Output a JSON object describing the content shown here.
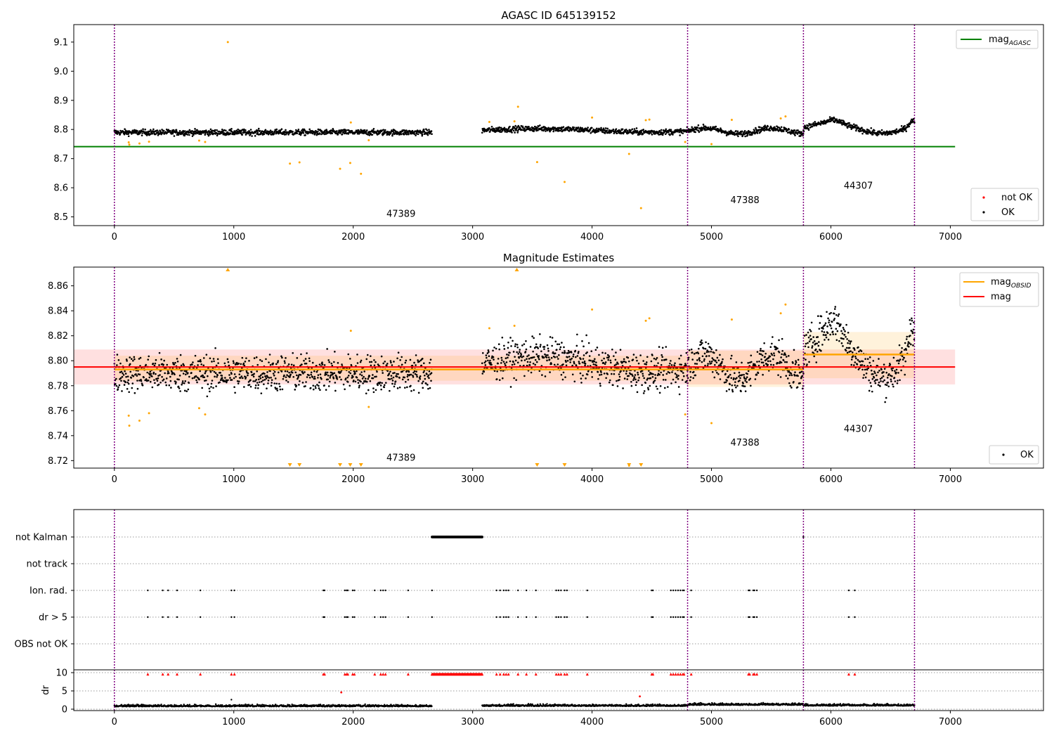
{
  "chart_data": [
    {
      "name": "agasc",
      "type": "scatter",
      "title": "AGASC ID 645139152",
      "xlim": [
        -340,
        7780
      ],
      "ylim": [
        8.47,
        9.16
      ],
      "yticks": [
        8.5,
        8.6,
        8.7,
        8.8,
        8.9,
        9.0,
        9.1
      ],
      "xticks": [
        0,
        1000,
        2000,
        3000,
        4000,
        5000,
        6000,
        7000
      ],
      "mag_agasc": 8.741,
      "obs_boundaries": [
        0,
        4800,
        5770,
        6700
      ],
      "obsid_labels": [
        {
          "text": "47389",
          "x": 2400,
          "y": 8.5
        },
        {
          "text": "47388",
          "x": 5280,
          "y": 8.547
        },
        {
          "text": "44307",
          "x": 6230,
          "y": 8.597
        }
      ],
      "ok_segments": [
        {
          "x": [
            0,
            2660
          ],
          "base": 8.79,
          "amp": 0.004
        },
        {
          "x": [
            3080,
            4800
          ],
          "base": 8.797,
          "amp": 0.006
        },
        {
          "x": [
            4800,
            5770
          ],
          "base": 8.795,
          "amp": 0.01
        },
        {
          "x": [
            5770,
            6700
          ],
          "base": 8.805,
          "amp": 0.018
        }
      ],
      "not_ok_points": [
        {
          "x": 950,
          "y": 9.1
        },
        {
          "x": 120,
          "y": 8.756
        },
        {
          "x": 125,
          "y": 8.748
        },
        {
          "x": 210,
          "y": 8.752
        },
        {
          "x": 290,
          "y": 8.758
        },
        {
          "x": 710,
          "y": 8.762
        },
        {
          "x": 760,
          "y": 8.757
        },
        {
          "x": 1470,
          "y": 8.683
        },
        {
          "x": 1550,
          "y": 8.687
        },
        {
          "x": 1890,
          "y": 8.665
        },
        {
          "x": 1975,
          "y": 8.685
        },
        {
          "x": 2065,
          "y": 8.648
        },
        {
          "x": 2130,
          "y": 8.763
        },
        {
          "x": 1980,
          "y": 8.824
        },
        {
          "x": 3140,
          "y": 8.826
        },
        {
          "x": 3350,
          "y": 8.828
        },
        {
          "x": 3380,
          "y": 8.878
        },
        {
          "x": 3540,
          "y": 8.688
        },
        {
          "x": 3770,
          "y": 8.62
        },
        {
          "x": 4000,
          "y": 8.841
        },
        {
          "x": 4310,
          "y": 8.716
        },
        {
          "x": 4410,
          "y": 8.53
        },
        {
          "x": 4450,
          "y": 8.832
        },
        {
          "x": 4480,
          "y": 8.834
        },
        {
          "x": 4780,
          "y": 8.757
        },
        {
          "x": 5000,
          "y": 8.75
        },
        {
          "x": 5170,
          "y": 8.833
        },
        {
          "x": 5580,
          "y": 8.838
        },
        {
          "x": 5620,
          "y": 8.845
        }
      ],
      "legend_top": {
        "label": "mag",
        "sub": "AGASC",
        "color": "#008000"
      },
      "legend_bottom": [
        {
          "label": "not OK",
          "color": "#ff0000"
        },
        {
          "label": "OK",
          "color": "#000000"
        }
      ]
    },
    {
      "name": "magnitude-estimates",
      "type": "scatter",
      "title": "Magnitude Estimates",
      "xlim": [
        -340,
        7780
      ],
      "ylim": [
        8.714,
        8.875
      ],
      "yticks": [
        8.72,
        8.74,
        8.76,
        8.78,
        8.8,
        8.82,
        8.84,
        8.86
      ],
      "xticks": [
        0,
        1000,
        2000,
        3000,
        4000,
        5000,
        6000,
        7000
      ],
      "mag_overall": 8.795,
      "mag_overall_band": [
        8.781,
        8.809
      ],
      "obsid_means": [
        {
          "x": [
            0,
            4800
          ],
          "y": 8.793,
          "band": [
            8.784,
            8.804
          ]
        },
        {
          "x": [
            4800,
            5770
          ],
          "y": 8.793,
          "band": [
            8.779,
            8.808
          ]
        },
        {
          "x": [
            5770,
            6700
          ],
          "y": 8.805,
          "band": [
            8.786,
            8.823
          ]
        }
      ],
      "obs_boundaries": [
        0,
        4800,
        5770,
        6700
      ],
      "obsid_labels": [
        {
          "text": "47389",
          "x": 2400,
          "y": 8.72
        },
        {
          "text": "47388",
          "x": 5280,
          "y": 8.732
        },
        {
          "text": "44307",
          "x": 6230,
          "y": 8.743
        }
      ],
      "overflow_up_x": [
        950,
        3370
      ],
      "overflow_down_x": [
        1470,
        1550,
        1890,
        1975,
        2065,
        3540,
        3770,
        4310,
        4410
      ],
      "legend_top": [
        {
          "label": "mag",
          "sub": "OBSID",
          "color": "#ffa500"
        },
        {
          "label": "mag",
          "sub": "",
          "color": "#ff0000"
        }
      ],
      "legend_bottom": [
        {
          "label": "OK",
          "color": "#000000"
        }
      ]
    },
    {
      "name": "flags",
      "type": "scatter",
      "xlim": [
        -340,
        7780
      ],
      "categories": [
        "not Kalman",
        "not track",
        "Ion. rad.",
        "dr > 5",
        "OBS not OK"
      ],
      "not_kalman": {
        "x": [
          2660,
          3080
        ]
      },
      "ion_rad_x": [
        280,
        405,
        450,
        525,
        720,
        980,
        1005,
        1750,
        1760,
        1930,
        1945,
        1955,
        1995,
        2010,
        2180,
        2230,
        2250,
        2270,
        2460,
        2660,
        3200,
        3230,
        3260,
        3280,
        3300,
        3380,
        3450,
        3530,
        3700,
        3720,
        3740,
        3770,
        3790,
        3960,
        4500,
        4510,
        4660,
        4680,
        4700,
        4720,
        4740,
        4760,
        4770,
        4830,
        5310,
        5320,
        5350,
        5360,
        5380,
        6150,
        6200
      ],
      "dr_ok_segments": [
        {
          "x": [
            0,
            2660
          ],
          "base": 0.7
        },
        {
          "x": [
            3080,
            4800
          ],
          "base": 0.8
        },
        {
          "x": [
            4800,
            5770
          ],
          "base": 1.1
        },
        {
          "x": [
            5770,
            6700
          ],
          "base": 0.9
        }
      ],
      "dr_notok_points": [
        {
          "x": 1900,
          "y": 4.6
        },
        {
          "x": 4400,
          "y": 3.5
        }
      ],
      "dr_ylim": [
        -0.5,
        10.5
      ],
      "dr_yticks": [
        0,
        5,
        10
      ],
      "dr_ylabel": "dr",
      "xticks": [
        0,
        1000,
        2000,
        3000,
        4000,
        5000,
        6000,
        7000
      ]
    }
  ]
}
